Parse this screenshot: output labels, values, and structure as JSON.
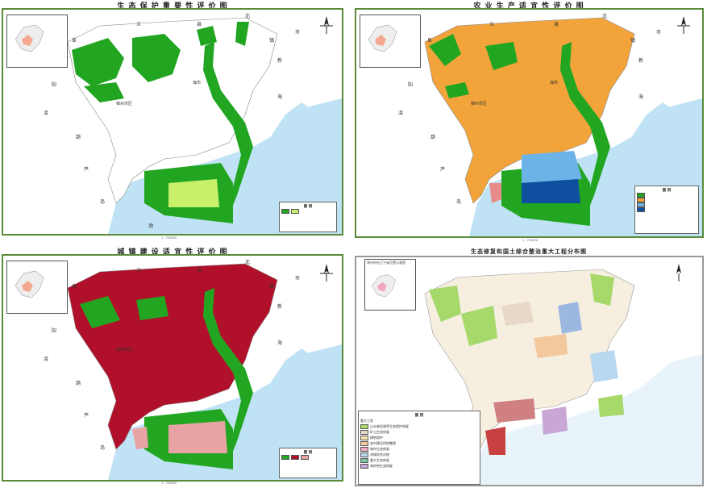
{
  "panels": [
    {
      "title": "生 态 保 护 重 要 性 评 价 图",
      "scale": "1 : 750000"
    },
    {
      "title": "农 业 生 产 适 宜 性 评 价 图",
      "scale": "1 : 750000"
    },
    {
      "title": "城 镇 建 设 适 宜 性 评 价 图",
      "scale": "1 : 750000"
    },
    {
      "title": "生态修复和国土综合整治重大工程分布图",
      "scale": "",
      "inset_caption": "锦州市在辽宁省位置示意图"
    }
  ],
  "place_labels": {
    "yi": "义",
    "xian": "县",
    "bei": "北",
    "zhen": "镇",
    "shi": "市",
    "fu": "阜",
    "xin": "新",
    "yang": "阳",
    "ling": "凌",
    "hai": "海",
    "hu": "葫",
    "lu": "芦",
    "dao": "岛",
    "bo": "渤",
    "jinzhou_city": "锦州市区",
    "hai_city": "海市"
  },
  "legend": {
    "title": "图 例",
    "major_projects": "重大工程",
    "project_items": [
      {
        "label": "山水林田湖草生态保护修复",
        "color": "#a6d86a"
      },
      {
        "label": "矿山生态修复",
        "color": "#e8d8c8"
      },
      {
        "label": "耕地保护",
        "color": "#f6e4b0"
      },
      {
        "label": "农村建设用地整理",
        "color": "#f2c89c"
      },
      {
        "label": "城市生态修复",
        "color": "#f0a8c4"
      },
      {
        "label": "流域综合治理",
        "color": "#b8d8f0"
      },
      {
        "label": "重大生态修复",
        "color": "#7fc0a0"
      },
      {
        "label": "海岸带生态修复",
        "color": "#c8a6d6"
      }
    ]
  },
  "colors": {
    "very_high": "#22a622",
    "high": "#c8f06a",
    "agri_suitable": "#f2a43a",
    "agri_less": "#6cb4e8",
    "agri_unsuitable": "#0e4fa0",
    "urban_suitable": "#b0102a",
    "urban_less": "#e8a4a4",
    "sea": "#bfe3f5",
    "outside": "#ffffff"
  }
}
